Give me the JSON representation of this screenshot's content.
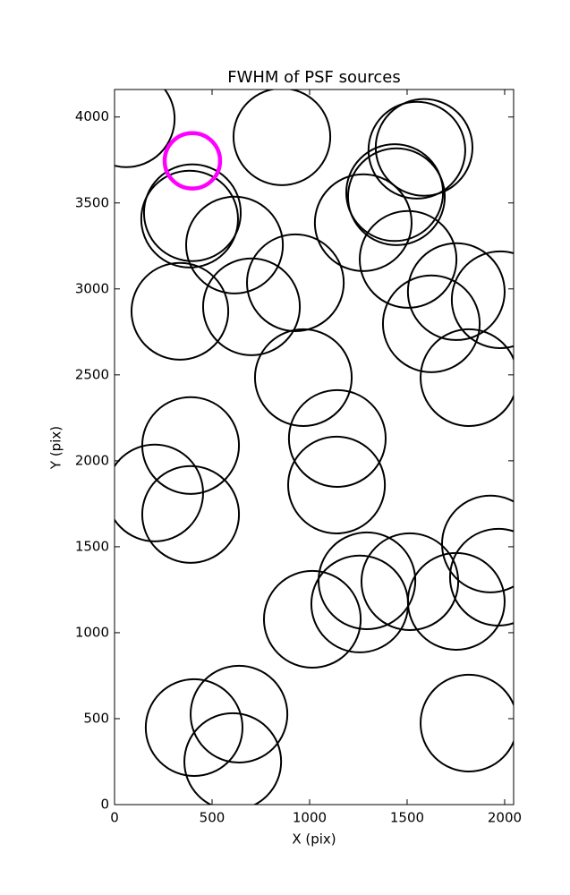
{
  "chart_data": {
    "type": "scatter",
    "title": "FWHM of PSF sources",
    "x_label": "X (pix)",
    "y_label": "Y (pix)",
    "xlim": [
      0,
      2046
    ],
    "ylim": [
      0,
      4160
    ],
    "xticks": [
      0,
      500,
      1000,
      1500,
      2000
    ],
    "yticks": [
      0,
      500,
      1000,
      1500,
      2000,
      2500,
      3000,
      3500,
      4000
    ],
    "series": [
      {
        "color": "#000000",
        "radius": 248,
        "x": [
          60,
          858,
          399,
          385,
          615,
          335,
          702,
          927,
          1275,
          1445,
          1436,
          1505,
          1550,
          1587,
          1752,
          1624,
          1977,
          1817,
          968,
          1142,
          1138,
          390,
          206,
          390,
          1927,
          1968,
          1514,
          1294,
          1257,
          1752,
          1014,
          1817,
          408,
          638,
          606
        ],
        "y": [
          3990,
          3885,
          3443,
          3406,
          3255,
          2870,
          2896,
          3036,
          3385,
          3536,
          3560,
          3172,
          3807,
          3823,
          2984,
          2797,
          2937,
          2484,
          2484,
          2130,
          1859,
          2089,
          1813,
          1688,
          1516,
          1323,
          1297,
          1302,
          1167,
          1182,
          1078,
          474,
          448,
          526,
          250
        ]
      },
      {
        "color": "#ff00ff",
        "radius": 142,
        "x": [
          399
        ],
        "y": [
          3745
        ]
      }
    ]
  }
}
